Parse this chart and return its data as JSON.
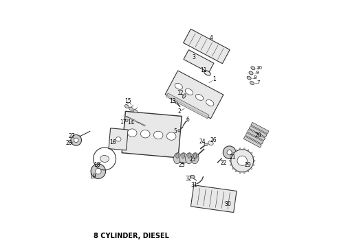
{
  "title": "8 CYLINDER, DIESEL",
  "title_fontsize": 7,
  "title_fontweight": "bold",
  "bg_color": "#ffffff",
  "fg_color": "#000000",
  "fig_width": 4.9,
  "fig_height": 3.6,
  "dpi": 100,
  "lc": "#333333",
  "fc_light": "#e8e8e8",
  "fc_mid": "#cccccc",
  "fc_dark": "#aaaaaa",
  "lw": 0.8
}
